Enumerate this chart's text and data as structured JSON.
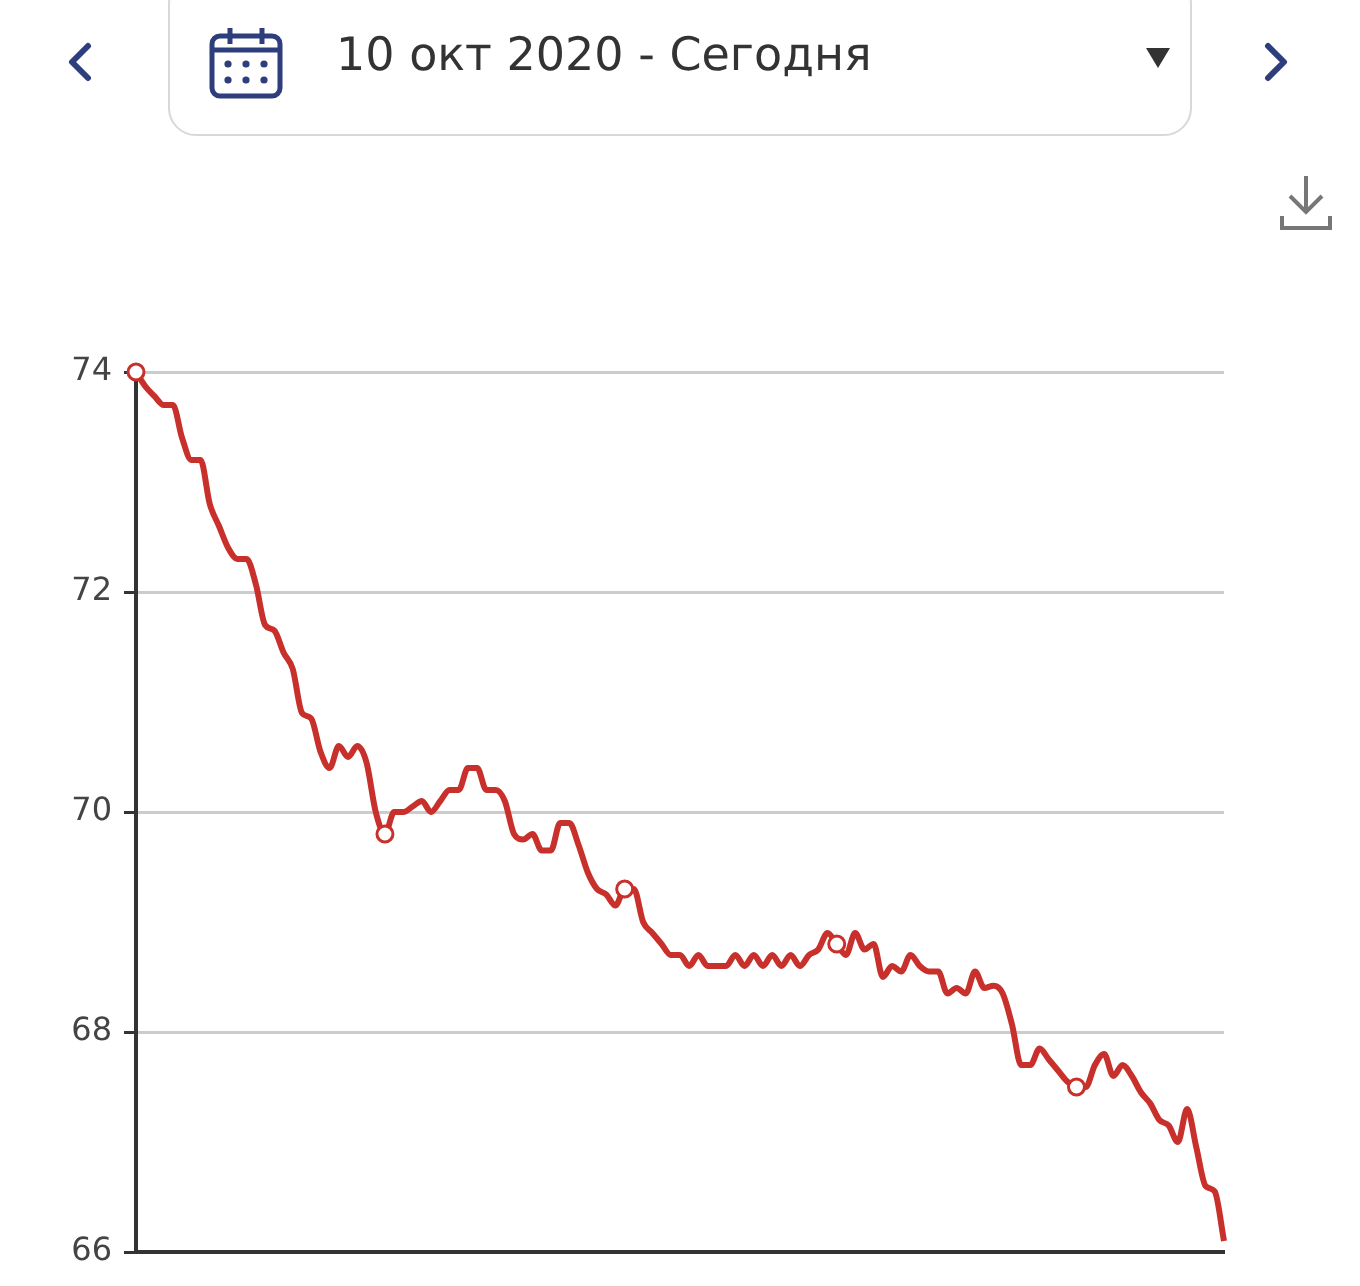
{
  "chart_data": {
    "type": "line",
    "annotations": [
      "10 окт 2020 - Сегодня"
    ],
    "categories": [
      null,
      null,
      null,
      null,
      null,
      null,
      null,
      null,
      null,
      null,
      null,
      null,
      null,
      null,
      null,
      null,
      null,
      null,
      null,
      null,
      null,
      null,
      null,
      null,
      null,
      null,
      null,
      null,
      null,
      null,
      null,
      null,
      null,
      null,
      null,
      null,
      null,
      null,
      null,
      null,
      null,
      null,
      null,
      null,
      null,
      null,
      null,
      null,
      null,
      null,
      null,
      null,
      null,
      null,
      null,
      null,
      null,
      null,
      null,
      null,
      null,
      null,
      null,
      null,
      null,
      null,
      null,
      null,
      null,
      null,
      null,
      null,
      null,
      null,
      null,
      null,
      null,
      null,
      null,
      null,
      null,
      null,
      null,
      null,
      null,
      null,
      null,
      null,
      null,
      null,
      null,
      null,
      null,
      null,
      null,
      null,
      null,
      null,
      null,
      null,
      null,
      null,
      null,
      null,
      null,
      null,
      null,
      null,
      null,
      null,
      null,
      null,
      null,
      null,
      null,
      null,
      null,
      null,
      null
    ],
    "ylim": [
      66,
      74
    ],
    "yticks": [
      66,
      68,
      70,
      72,
      74
    ],
    "grid": "y",
    "legend": false,
    "tick_labels": "y",
    "series": [
      {
        "color": "#c8302c",
        "marker": "none",
        "values": [
          74.0,
          73.87,
          73.78,
          73.7,
          73.7,
          73.4,
          73.2,
          73.2,
          72.8,
          72.6,
          72.4,
          72.3,
          72.3,
          72.07,
          71.7,
          71.65,
          71.45,
          71.3,
          70.9,
          70.85,
          70.55,
          70.4,
          70.6,
          70.5,
          70.6,
          70.45,
          70.0,
          69.8,
          70.0,
          70.0,
          70.05,
          70.1,
          70.0,
          70.1,
          70.2,
          70.2,
          70.4,
          70.4,
          70.2,
          70.2,
          70.1,
          69.8,
          69.75,
          69.8,
          69.65,
          69.65,
          69.9,
          69.9,
          69.7,
          69.45,
          69.3,
          69.25,
          69.15,
          69.3,
          69.3,
          69.0,
          68.9,
          68.8,
          68.7,
          68.7,
          68.6,
          68.7,
          68.6,
          68.6,
          68.6,
          68.7,
          68.6,
          68.7,
          68.6,
          68.7,
          68.6,
          68.7,
          68.6,
          68.7,
          68.75,
          68.9,
          68.8,
          68.7,
          68.9,
          68.75,
          68.8,
          68.5,
          68.6,
          68.55,
          68.7,
          68.6,
          68.55,
          68.55,
          68.35,
          68.4,
          68.35,
          68.55,
          68.4,
          68.42,
          68.35,
          68.07,
          67.7,
          67.7,
          67.85,
          67.75,
          67.65,
          67.55,
          67.5,
          67.5,
          67.7,
          67.8,
          67.6,
          67.7,
          67.6,
          67.45,
          67.35,
          67.2,
          67.15,
          67.0,
          67.3,
          66.95,
          66.6,
          66.55,
          66.1
        ]
      },
      {
        "type": "scatter",
        "color": "#c8302c",
        "marker": "circle",
        "values": [
          74.0,
          null,
          null,
          null,
          null,
          null,
          null,
          null,
          null,
          null,
          null,
          null,
          null,
          null,
          null,
          null,
          null,
          null,
          null,
          null,
          null,
          null,
          null,
          null,
          null,
          null,
          null,
          69.8,
          null,
          null,
          null,
          null,
          null,
          null,
          null,
          null,
          null,
          null,
          null,
          null,
          null,
          null,
          null,
          null,
          null,
          null,
          null,
          null,
          null,
          null,
          null,
          null,
          null,
          69.3,
          null,
          null,
          null,
          null,
          null,
          null,
          null,
          null,
          null,
          null,
          null,
          null,
          null,
          null,
          null,
          null,
          null,
          null,
          null,
          null,
          null,
          null,
          68.8,
          null,
          null,
          null,
          null,
          null,
          null,
          null,
          null,
          null,
          null,
          null,
          null,
          null,
          null,
          null,
          null,
          null,
          null,
          null,
          null,
          null,
          null,
          null,
          null,
          null,
          67.5,
          null,
          null,
          null,
          null,
          null,
          null,
          null,
          null,
          null,
          null,
          null,
          null,
          null,
          null,
          null,
          null
        ]
      }
    ]
  }
}
